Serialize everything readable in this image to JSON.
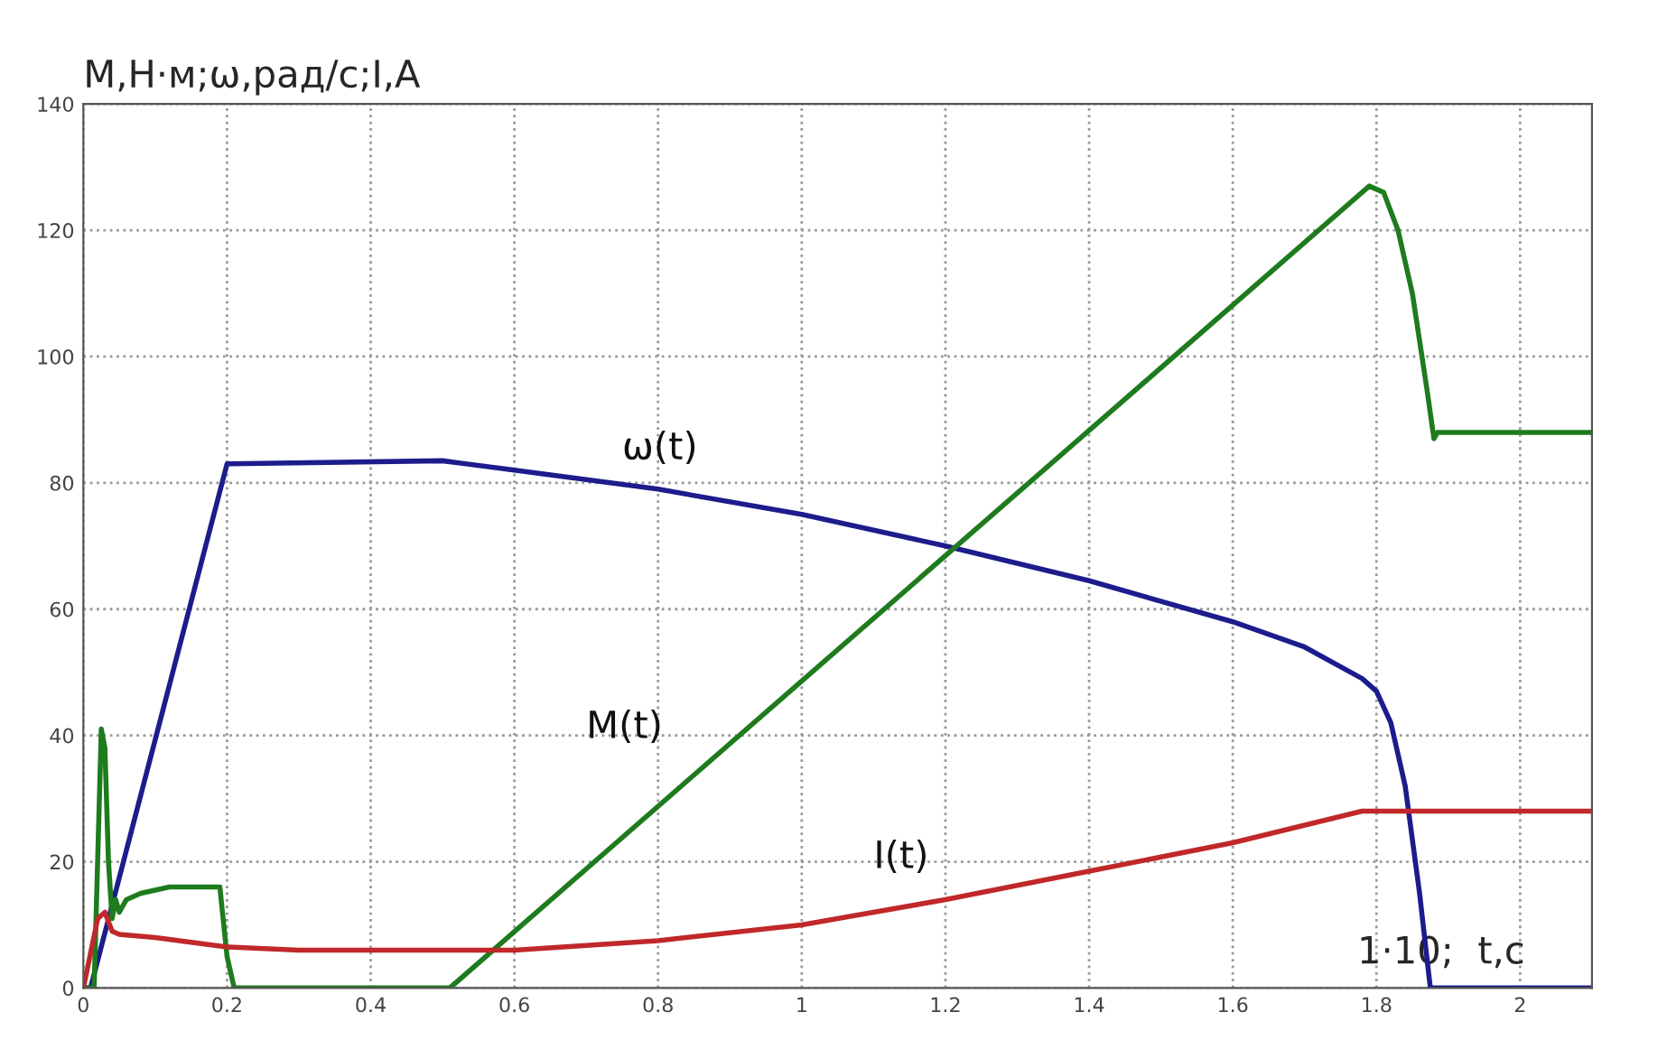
{
  "chart_data": {
    "type": "line",
    "xlabel": "1·10;  t,c",
    "ylabel": "M,Н·м;ω,рад/с;I,A",
    "xlim": [
      0,
      2.1
    ],
    "ylim": [
      0,
      140
    ],
    "xticks": [
      0,
      0.2,
      0.4,
      0.6,
      0.8,
      1,
      1.2,
      1.4,
      1.6,
      1.8,
      2
    ],
    "yticks": [
      0,
      20,
      40,
      60,
      80,
      100,
      120,
      140
    ],
    "grid": true,
    "line_style": "solid",
    "marker": "none",
    "series": [
      {
        "name": "ω(t)",
        "color": "#1c1c8c",
        "x": [
          0,
          0.01,
          0.2,
          0.5,
          0.6,
          0.8,
          1.0,
          1.2,
          1.4,
          1.6,
          1.7,
          1.78,
          1.8,
          1.82,
          1.84,
          1.86,
          1.875,
          2.1
        ],
        "values": [
          0,
          0,
          83,
          83.5,
          82,
          79,
          75,
          70,
          64.5,
          58,
          54,
          49,
          47,
          42,
          32,
          15,
          0,
          0
        ]
      },
      {
        "name": "M(t)",
        "color": "#1e7b1e",
        "x": [
          0,
          0.015,
          0.025,
          0.03,
          0.035,
          0.04,
          0.045,
          0.05,
          0.06,
          0.08,
          0.12,
          0.19,
          0.2,
          0.21,
          0.51,
          1.79,
          1.81,
          1.83,
          1.85,
          1.87,
          1.88,
          1.885,
          2.1
        ],
        "values": [
          0,
          0,
          41,
          38,
          20,
          11,
          14,
          12,
          14,
          15,
          16,
          16,
          5,
          0,
          0,
          127,
          126,
          120,
          110,
          95,
          87,
          88,
          88
        ]
      },
      {
        "name": "I(t)",
        "color": "#c0282a",
        "x": [
          0,
          0.02,
          0.03,
          0.04,
          0.05,
          0.1,
          0.2,
          0.3,
          0.6,
          0.8,
          1.0,
          1.2,
          1.4,
          1.6,
          1.78,
          2.1
        ],
        "values": [
          0,
          11,
          12,
          9,
          8.5,
          8,
          6.5,
          6,
          6,
          7.5,
          10,
          14,
          18.5,
          23,
          28,
          28
        ]
      }
    ]
  }
}
